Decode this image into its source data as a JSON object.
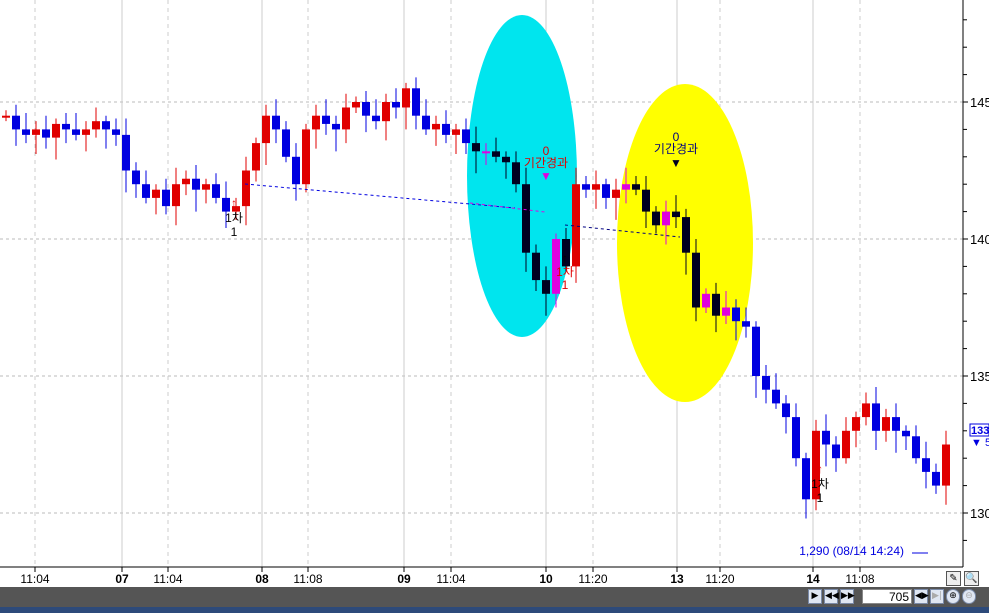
{
  "chart_data": {
    "type": "candlestick",
    "y_axis": {
      "ticks": [
        "145",
        "140",
        "135",
        "130"
      ],
      "tick_values": [
        1450,
        1400,
        1350,
        1300
      ],
      "range": [
        1280,
        1490
      ],
      "side": "right"
    },
    "x_axis": {
      "ticks": [
        "11:04",
        "07",
        "11:04",
        "08",
        "11:08",
        "09",
        "11:04",
        "10",
        "11:20",
        "13",
        "11:20",
        "14",
        "11:08"
      ]
    },
    "grid": true,
    "close": [
      1445,
      1440,
      1438,
      1440,
      1437,
      1442,
      1440,
      1438,
      1440,
      1443,
      1440,
      1438,
      1425,
      1420,
      1415,
      1418,
      1412,
      1420,
      1422,
      1418,
      1420,
      1415,
      1410,
      1412,
      1425,
      1435,
      1445,
      1440,
      1430,
      1420,
      1440,
      1445,
      1442,
      1440,
      1448,
      1450,
      1445,
      1443,
      1450,
      1448,
      1455,
      1445,
      1440,
      1442,
      1438,
      1440,
      1435,
      1432,
      1432,
      1430,
      1428,
      1420,
      1395,
      1385,
      1380,
      1400,
      1390,
      1420,
      1418,
      1420,
      1415,
      1418,
      1420,
      1418,
      1410,
      1405,
      1410,
      1408,
      1395,
      1375,
      1380,
      1372,
      1375,
      1370,
      1368,
      1350,
      1345,
      1340,
      1335,
      1320,
      1305,
      1330,
      1325,
      1320,
      1330,
      1335,
      1340,
      1330,
      1335,
      1330,
      1328,
      1320,
      1315,
      1310,
      1325
    ],
    "colors": {
      "up": "#e00000",
      "down": "#0000e0",
      "highlight_up": "#e000e0",
      "highlight_down": "#000020"
    },
    "current_price_label": "133",
    "current_change_label": "5",
    "low_annotation": "1,290 (08/14 14:24)",
    "annotations": [
      {
        "label_top": "0",
        "label": "기간경과",
        "color": "#e00000"
      },
      {
        "label_top": "0",
        "label": "기간경과",
        "color": "#000080"
      },
      {
        "label": "1차",
        "sub": "1",
        "color": "#000000"
      },
      {
        "label": "1차",
        "sub": "1",
        "color": "#e00000"
      },
      {
        "label": "1차",
        "sub": "1",
        "color": "#000000"
      }
    ],
    "highlight_colors": [
      "#00e5ee",
      "#ffff00"
    ]
  },
  "navigator": {
    "count": "705"
  }
}
